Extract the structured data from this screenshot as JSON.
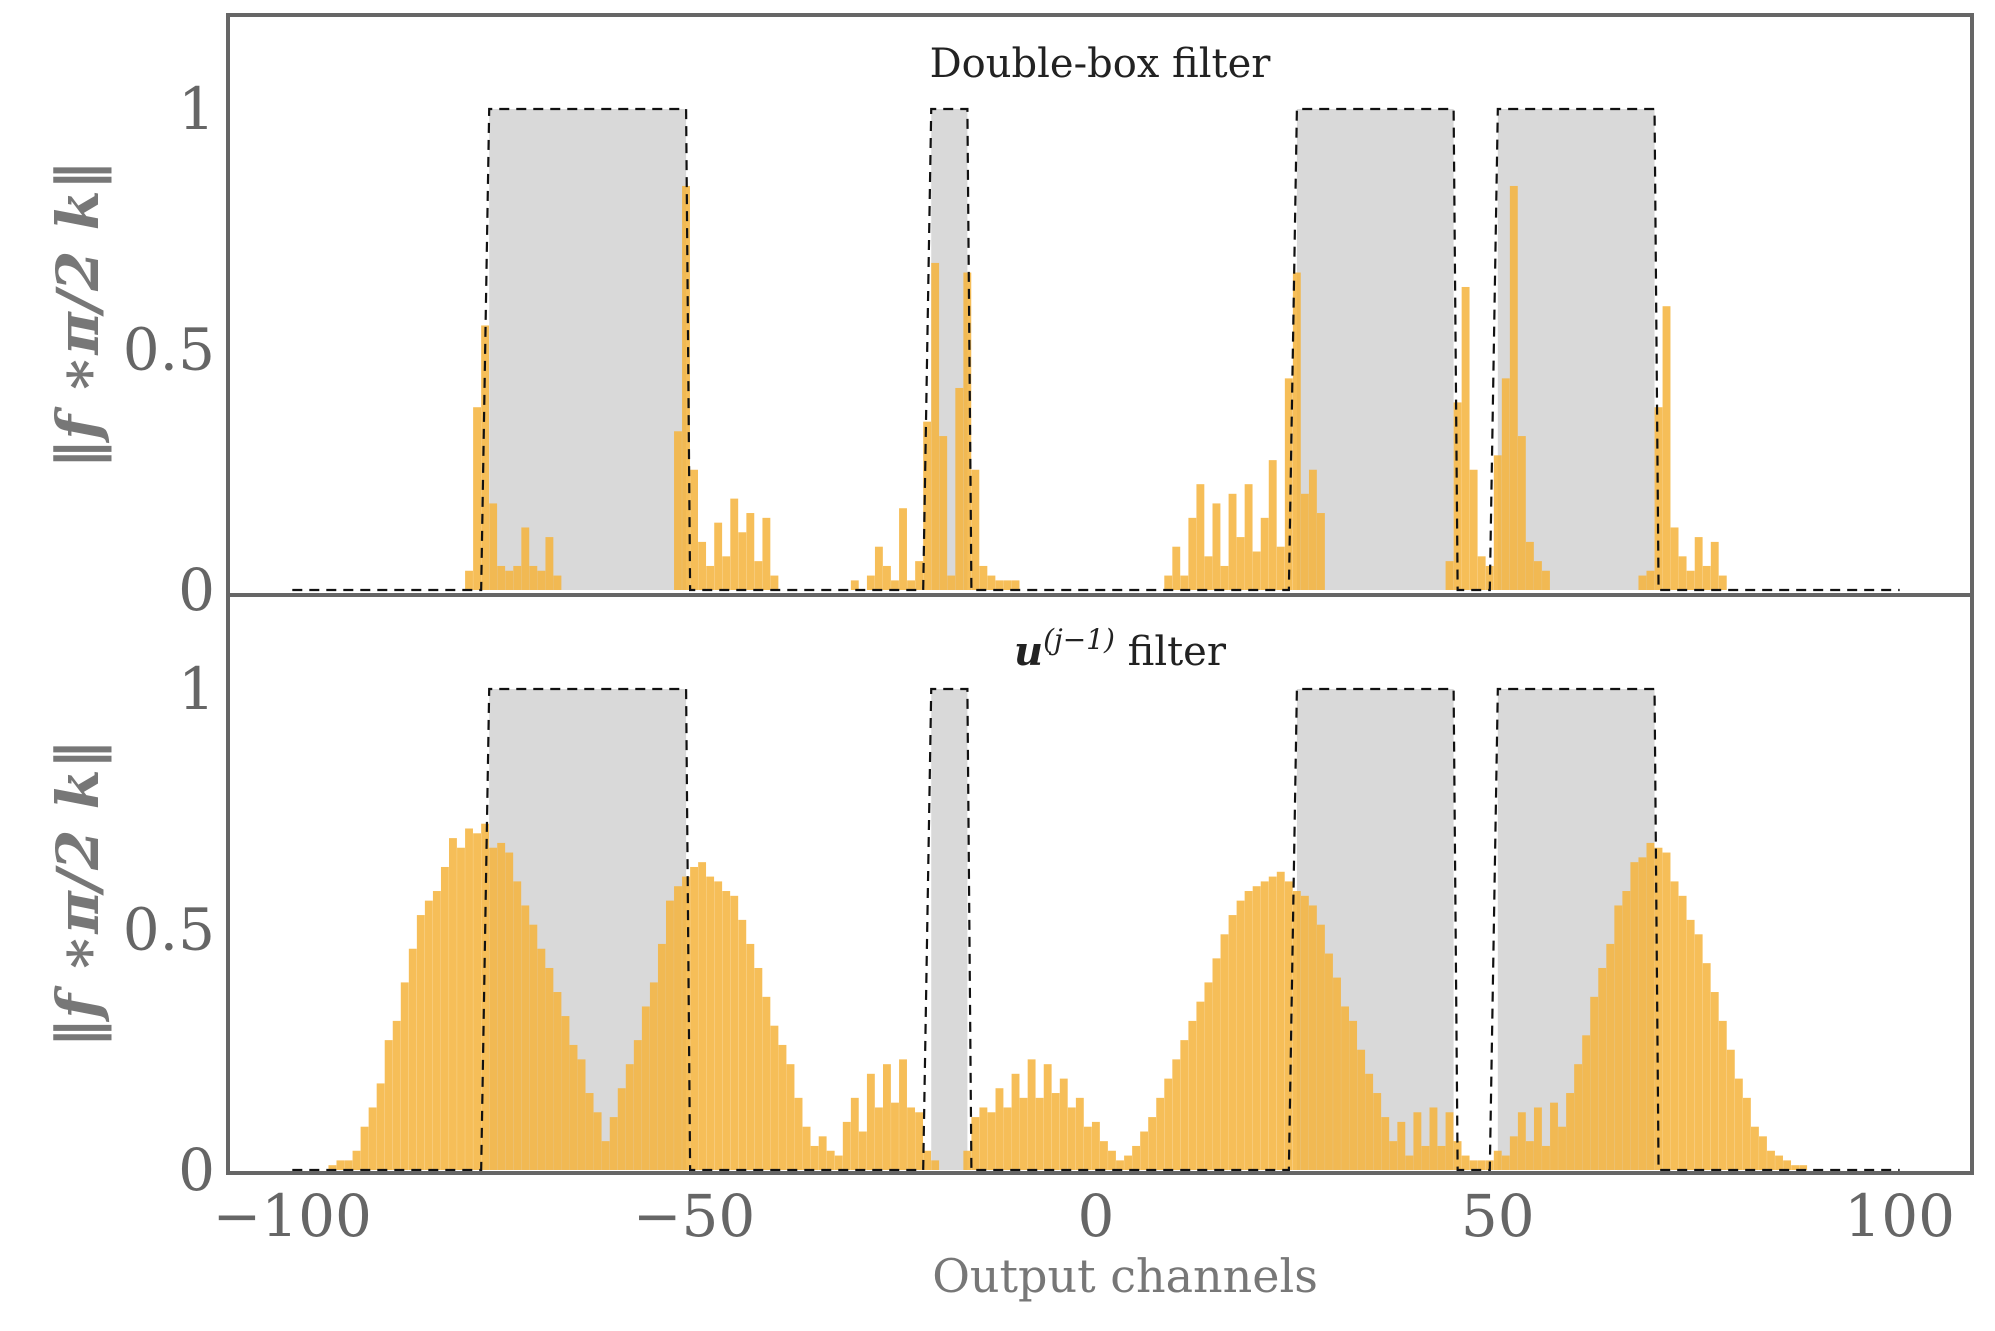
{
  "chart_data": {
    "type": "bar",
    "xlabel": "Output channels",
    "ylabel": "‖f ∗π/2 k‖",
    "xlim": [
      -108,
      109
    ],
    "x_ticks": [
      -100,
      -50,
      0,
      50,
      100
    ],
    "x_tick_labels": [
      "−100",
      "−50",
      "0",
      "50",
      "100"
    ],
    "bar_color": "#f5b33b",
    "box_color": "#d9d9d9",
    "panels": [
      {
        "title": "Double-box filter",
        "ylim": [
          0,
          1.2
        ],
        "y_ticks": [
          0,
          0.5,
          1
        ],
        "y_tick_labels": [
          "0",
          "0.5",
          "1"
        ],
        "ylabel": "‖f ∗π/2 k‖",
        "boxes": [
          [
            -75.5,
            -51
          ],
          [
            -20.5,
            -16
          ],
          [
            25,
            44.5
          ],
          [
            50,
            69.5
          ]
        ],
        "bars": [
          [
            -78,
            0.04
          ],
          [
            -77,
            0.38
          ],
          [
            -76,
            0.55
          ],
          [
            -75,
            0.18
          ],
          [
            -74,
            0.05
          ],
          [
            -73,
            0.04
          ],
          [
            -72,
            0.05
          ],
          [
            -71,
            0.13
          ],
          [
            -70,
            0.05
          ],
          [
            -69,
            0.04
          ],
          [
            -68,
            0.11
          ],
          [
            -67,
            0.03
          ],
          [
            -52,
            0.33
          ],
          [
            -51,
            0.84
          ],
          [
            -50,
            0.25
          ],
          [
            -49,
            0.1
          ],
          [
            -48,
            0.05
          ],
          [
            -47,
            0.14
          ],
          [
            -46,
            0.07
          ],
          [
            -45,
            0.19
          ],
          [
            -44,
            0.12
          ],
          [
            -43,
            0.16
          ],
          [
            -42,
            0.06
          ],
          [
            -41,
            0.15
          ],
          [
            -40,
            0.03
          ],
          [
            -30,
            0.02
          ],
          [
            -28,
            0.03
          ],
          [
            -27,
            0.09
          ],
          [
            -26,
            0.05
          ],
          [
            -25,
            0.02
          ],
          [
            -24,
            0.17
          ],
          [
            -23,
            0.02
          ],
          [
            -22,
            0.06
          ],
          [
            -21,
            0.35
          ],
          [
            -20,
            0.68
          ],
          [
            -19,
            0.32
          ],
          [
            -18,
            0.03
          ],
          [
            -17,
            0.42
          ],
          [
            -16,
            0.66
          ],
          [
            -15,
            0.25
          ],
          [
            -14,
            0.05
          ],
          [
            -13,
            0.03
          ],
          [
            -12,
            0.02
          ],
          [
            -11,
            0.02
          ],
          [
            -10,
            0.02
          ],
          [
            9,
            0.03
          ],
          [
            10,
            0.09
          ],
          [
            11,
            0.03
          ],
          [
            12,
            0.15
          ],
          [
            13,
            0.22
          ],
          [
            14,
            0.07
          ],
          [
            15,
            0.18
          ],
          [
            16,
            0.05
          ],
          [
            17,
            0.2
          ],
          [
            18,
            0.11
          ],
          [
            19,
            0.22
          ],
          [
            20,
            0.08
          ],
          [
            21,
            0.15
          ],
          [
            22,
            0.27
          ],
          [
            23,
            0.09
          ],
          [
            24,
            0.44
          ],
          [
            25,
            0.66
          ],
          [
            26,
            0.2
          ],
          [
            27,
            0.25
          ],
          [
            28,
            0.16
          ],
          [
            44,
            0.06
          ],
          [
            45,
            0.39
          ],
          [
            46,
            0.63
          ],
          [
            47,
            0.25
          ],
          [
            48,
            0.07
          ],
          [
            49,
            0.05
          ],
          [
            50,
            0.28
          ],
          [
            51,
            0.44
          ],
          [
            52,
            0.84
          ],
          [
            53,
            0.32
          ],
          [
            54,
            0.1
          ],
          [
            55,
            0.06
          ],
          [
            56,
            0.04
          ],
          [
            68,
            0.03
          ],
          [
            69,
            0.04
          ],
          [
            70,
            0.38
          ],
          [
            71,
            0.59
          ],
          [
            72,
            0.13
          ],
          [
            73,
            0.07
          ],
          [
            74,
            0.04
          ],
          [
            75,
            0.11
          ],
          [
            76,
            0.05
          ],
          [
            77,
            0.1
          ],
          [
            78,
            0.03
          ]
        ]
      },
      {
        "title": "u(j−1) filter",
        "title_main": "u",
        "title_sup": "(j−1)",
        "title_rest": " filter",
        "ylim": [
          0,
          1.2
        ],
        "y_ticks": [
          0,
          0.5,
          1
        ],
        "y_tick_labels": [
          "0",
          "0.5",
          "1"
        ],
        "ylabel": "‖f ∗π/2 k‖",
        "boxes": [
          [
            -75.5,
            -51
          ],
          [
            -20.5,
            -16
          ],
          [
            25,
            44.5
          ],
          [
            50,
            69.5
          ]
        ],
        "bars": [
          [
            -95,
            0.01
          ],
          [
            -94,
            0.02
          ],
          [
            -93,
            0.02
          ],
          [
            -92,
            0.04
          ],
          [
            -91,
            0.09
          ],
          [
            -90,
            0.13
          ],
          [
            -89,
            0.18
          ],
          [
            -88,
            0.27
          ],
          [
            -87,
            0.31
          ],
          [
            -86,
            0.39
          ],
          [
            -85,
            0.46
          ],
          [
            -84,
            0.53
          ],
          [
            -83,
            0.56
          ],
          [
            -82,
            0.58
          ],
          [
            -81,
            0.63
          ],
          [
            -80,
            0.69
          ],
          [
            -79,
            0.67
          ],
          [
            -78,
            0.71
          ],
          [
            -77,
            0.7
          ],
          [
            -76,
            0.72
          ],
          [
            -75,
            0.67
          ],
          [
            -74,
            0.68
          ],
          [
            -73,
            0.66
          ],
          [
            -72,
            0.6
          ],
          [
            -71,
            0.55
          ],
          [
            -70,
            0.51
          ],
          [
            -69,
            0.46
          ],
          [
            -68,
            0.42
          ],
          [
            -67,
            0.37
          ],
          [
            -66,
            0.32
          ],
          [
            -65,
            0.26
          ],
          [
            -64,
            0.23
          ],
          [
            -63,
            0.16
          ],
          [
            -62,
            0.12
          ],
          [
            -61,
            0.06
          ],
          [
            -60,
            0.11
          ],
          [
            -59,
            0.17
          ],
          [
            -58,
            0.22
          ],
          [
            -57,
            0.27
          ],
          [
            -56,
            0.34
          ],
          [
            -55,
            0.39
          ],
          [
            -54,
            0.47
          ],
          [
            -53,
            0.56
          ],
          [
            -52,
            0.59
          ],
          [
            -51,
            0.61
          ],
          [
            -50,
            0.63
          ],
          [
            -49,
            0.64
          ],
          [
            -48,
            0.61
          ],
          [
            -47,
            0.6
          ],
          [
            -46,
            0.58
          ],
          [
            -45,
            0.57
          ],
          [
            -44,
            0.52
          ],
          [
            -43,
            0.47
          ],
          [
            -42,
            0.42
          ],
          [
            -41,
            0.36
          ],
          [
            -40,
            0.3
          ],
          [
            -39,
            0.26
          ],
          [
            -38,
            0.22
          ],
          [
            -37,
            0.15
          ],
          [
            -36,
            0.09
          ],
          [
            -35,
            0.05
          ],
          [
            -34,
            0.07
          ],
          [
            -33,
            0.04
          ],
          [
            -32,
            0.03
          ],
          [
            -31,
            0.1
          ],
          [
            -30,
            0.15
          ],
          [
            -29,
            0.08
          ],
          [
            -28,
            0.2
          ],
          [
            -27,
            0.13
          ],
          [
            -26,
            0.22
          ],
          [
            -25,
            0.14
          ],
          [
            -24,
            0.23
          ],
          [
            -23,
            0.13
          ],
          [
            -22,
            0.12
          ],
          [
            -21,
            0.04
          ],
          [
            -20,
            0.02
          ],
          [
            -16,
            0.04
          ],
          [
            -15,
            0.11
          ],
          [
            -14,
            0.13
          ],
          [
            -13,
            0.12
          ],
          [
            -12,
            0.17
          ],
          [
            -11,
            0.13
          ],
          [
            -10,
            0.2
          ],
          [
            -9,
            0.15
          ],
          [
            -8,
            0.23
          ],
          [
            -7,
            0.15
          ],
          [
            -6,
            0.22
          ],
          [
            -5,
            0.16
          ],
          [
            -4,
            0.19
          ],
          [
            -3,
            0.13
          ],
          [
            -2,
            0.15
          ],
          [
            -1,
            0.09
          ],
          [
            0,
            0.1
          ],
          [
            1,
            0.06
          ],
          [
            2,
            0.04
          ],
          [
            3,
            0.02
          ],
          [
            4,
            0.03
          ],
          [
            5,
            0.05
          ],
          [
            6,
            0.08
          ],
          [
            7,
            0.11
          ],
          [
            8,
            0.15
          ],
          [
            9,
            0.19
          ],
          [
            10,
            0.23
          ],
          [
            11,
            0.27
          ],
          [
            12,
            0.31
          ],
          [
            13,
            0.35
          ],
          [
            14,
            0.39
          ],
          [
            15,
            0.44
          ],
          [
            16,
            0.49
          ],
          [
            17,
            0.53
          ],
          [
            18,
            0.56
          ],
          [
            19,
            0.58
          ],
          [
            20,
            0.59
          ],
          [
            21,
            0.6
          ],
          [
            22,
            0.61
          ],
          [
            23,
            0.62
          ],
          [
            24,
            0.6
          ],
          [
            25,
            0.58
          ],
          [
            26,
            0.57
          ],
          [
            27,
            0.55
          ],
          [
            28,
            0.51
          ],
          [
            29,
            0.45
          ],
          [
            30,
            0.4
          ],
          [
            31,
            0.34
          ],
          [
            32,
            0.31
          ],
          [
            33,
            0.25
          ],
          [
            34,
            0.2
          ],
          [
            35,
            0.16
          ],
          [
            36,
            0.11
          ],
          [
            37,
            0.06
          ],
          [
            38,
            0.1
          ],
          [
            39,
            0.03
          ],
          [
            40,
            0.12
          ],
          [
            41,
            0.05
          ],
          [
            42,
            0.13
          ],
          [
            43,
            0.05
          ],
          [
            44,
            0.12
          ],
          [
            45,
            0.06
          ],
          [
            46,
            0.03
          ],
          [
            47,
            0.02
          ],
          [
            48,
            0.02
          ],
          [
            49,
            0.02
          ],
          [
            50,
            0.04
          ],
          [
            51,
            0.03
          ],
          [
            52,
            0.07
          ],
          [
            53,
            0.12
          ],
          [
            54,
            0.06
          ],
          [
            55,
            0.13
          ],
          [
            56,
            0.05
          ],
          [
            57,
            0.14
          ],
          [
            58,
            0.09
          ],
          [
            59,
            0.16
          ],
          [
            60,
            0.22
          ],
          [
            61,
            0.28
          ],
          [
            62,
            0.36
          ],
          [
            63,
            0.42
          ],
          [
            64,
            0.47
          ],
          [
            65,
            0.55
          ],
          [
            66,
            0.58
          ],
          [
            67,
            0.64
          ],
          [
            68,
            0.65
          ],
          [
            69,
            0.68
          ],
          [
            70,
            0.67
          ],
          [
            71,
            0.66
          ],
          [
            72,
            0.6
          ],
          [
            73,
            0.57
          ],
          [
            74,
            0.52
          ],
          [
            75,
            0.49
          ],
          [
            76,
            0.43
          ],
          [
            77,
            0.37
          ],
          [
            78,
            0.31
          ],
          [
            79,
            0.25
          ],
          [
            80,
            0.19
          ],
          [
            81,
            0.15
          ],
          [
            82,
            0.09
          ],
          [
            83,
            0.07
          ],
          [
            84,
            0.04
          ],
          [
            85,
            0.03
          ],
          [
            86,
            0.02
          ],
          [
            87,
            0.01
          ],
          [
            88,
            0.01
          ]
        ]
      }
    ]
  }
}
